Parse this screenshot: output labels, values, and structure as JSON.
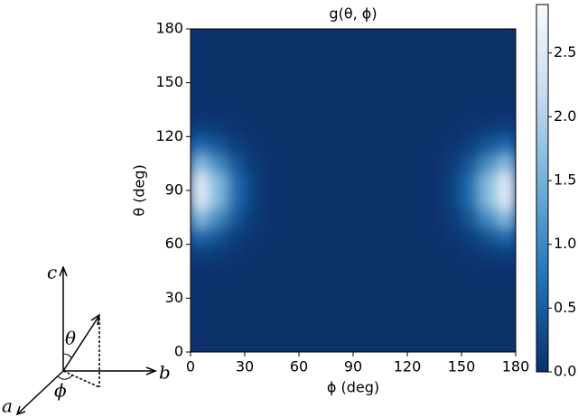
{
  "chart_data": {
    "type": "heatmap",
    "title": "g(θ, ϕ)",
    "x_label": "ϕ (deg)",
    "y_label": "θ (deg)",
    "x": [
      5,
      15,
      25,
      35,
      45,
      55,
      65,
      75,
      85,
      95,
      105,
      115,
      125,
      135,
      145,
      155,
      165,
      175
    ],
    "y": [
      5,
      15,
      25,
      35,
      45,
      55,
      65,
      75,
      85,
      95,
      105,
      115,
      125,
      135,
      145,
      155,
      165,
      175
    ],
    "z": [
      [
        0,
        0,
        0,
        0,
        0,
        0,
        0,
        0,
        0,
        0,
        0,
        0,
        0,
        0,
        0,
        0,
        0,
        0
      ],
      [
        0,
        0,
        0,
        0,
        0,
        0,
        0,
        0,
        0,
        0,
        0,
        0,
        0,
        0,
        0,
        0,
        0,
        0
      ],
      [
        0,
        0,
        0,
        0,
        0,
        0,
        0,
        0,
        0,
        0,
        0,
        0,
        0,
        0,
        0,
        0,
        0,
        0
      ],
      [
        0,
        0,
        0,
        0,
        0,
        0,
        0,
        0,
        0,
        0,
        0,
        0,
        0,
        0,
        0,
        0,
        0,
        0
      ],
      [
        0.03,
        0.02,
        0.01,
        0,
        0,
        0,
        0,
        0,
        0,
        0,
        0,
        0,
        0,
        0,
        0,
        0.01,
        0.02,
        0.03
      ],
      [
        0.18,
        0.11,
        0.05,
        0.01,
        0,
        0,
        0,
        0,
        0,
        0,
        0,
        0,
        0,
        0,
        0.01,
        0.05,
        0.11,
        0.18
      ],
      [
        0.67,
        0.43,
        0.18,
        0.05,
        0.01,
        0,
        0,
        0,
        0,
        0,
        0,
        0,
        0,
        0.01,
        0.05,
        0.18,
        0.43,
        0.67
      ],
      [
        1.64,
        1.05,
        0.43,
        0.11,
        0.02,
        0,
        0,
        0,
        0,
        0,
        0,
        0,
        0,
        0.02,
        0.11,
        0.43,
        1.05,
        1.64
      ],
      [
        2.55,
        1.64,
        0.67,
        0.18,
        0.03,
        0,
        0,
        0,
        0,
        0,
        0,
        0,
        0,
        0.03,
        0.18,
        0.67,
        1.64,
        2.55
      ],
      [
        2.55,
        1.64,
        0.67,
        0.18,
        0.03,
        0,
        0,
        0,
        0,
        0,
        0,
        0,
        0,
        0.03,
        0.18,
        0.67,
        1.64,
        2.55
      ],
      [
        1.64,
        1.05,
        0.43,
        0.11,
        0.02,
        0,
        0,
        0,
        0,
        0,
        0,
        0,
        0,
        0.02,
        0.11,
        0.43,
        1.05,
        1.64
      ],
      [
        0.67,
        0.43,
        0.18,
        0.05,
        0.01,
        0,
        0,
        0,
        0,
        0,
        0,
        0,
        0,
        0.01,
        0.05,
        0.18,
        0.43,
        0.67
      ],
      [
        0.18,
        0.11,
        0.05,
        0.01,
        0,
        0,
        0,
        0,
        0,
        0,
        0,
        0,
        0,
        0,
        0.01,
        0.05,
        0.11,
        0.18
      ],
      [
        0.03,
        0.02,
        0.01,
        0,
        0,
        0,
        0,
        0,
        0,
        0,
        0,
        0,
        0,
        0,
        0,
        0.01,
        0.02,
        0.03
      ],
      [
        0,
        0,
        0,
        0,
        0,
        0,
        0,
        0,
        0,
        0,
        0,
        0,
        0,
        0,
        0,
        0,
        0,
        0
      ],
      [
        0,
        0,
        0,
        0,
        0,
        0,
        0,
        0,
        0,
        0,
        0,
        0,
        0,
        0,
        0,
        0,
        0,
        0
      ],
      [
        0,
        0,
        0,
        0,
        0,
        0,
        0,
        0,
        0,
        0,
        0,
        0,
        0,
        0,
        0,
        0,
        0,
        0
      ],
      [
        0,
        0,
        0,
        0,
        0,
        0,
        0,
        0,
        0,
        0,
        0,
        0,
        0,
        0,
        0,
        0,
        0,
        0
      ]
    ],
    "xlim": [
      0,
      180
    ],
    "xticks": [
      0,
      30,
      60,
      90,
      120,
      150,
      180
    ],
    "ylim": [
      0,
      180
    ],
    "yticks": [
      0,
      30,
      60,
      90,
      120,
      150,
      180
    ],
    "clim": [
      0,
      2.88
    ],
    "cticks": [
      {
        "value": 0,
        "label": "0.0"
      },
      0.5,
      {
        "value": 1,
        "label": "1.0"
      },
      1.5,
      {
        "value": 2,
        "label": "2.0"
      },
      2.5
    ],
    "colormap": [
      "#08306b",
      "#2171b5",
      "#6baed6",
      "#c6dbef",
      "#f7fbff"
    ]
  },
  "diagram": {
    "labels": {
      "c": "c",
      "b": "b",
      "a": "a",
      "theta": "θ",
      "phi": "ϕ"
    }
  }
}
